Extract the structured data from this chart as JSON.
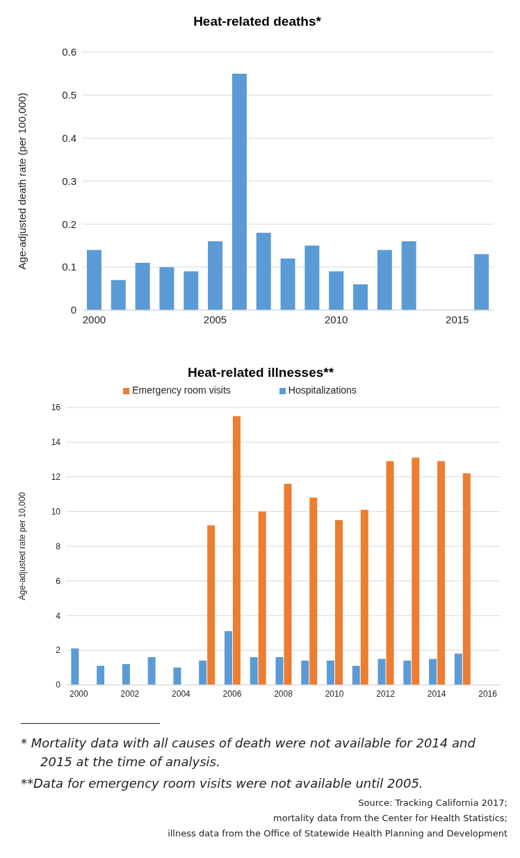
{
  "chart_data": [
    {
      "type": "bar",
      "title": "Heat-related deaths*",
      "ylabel": "Age-adjusted death rate (per 100,000)",
      "categories": [
        "2000",
        null,
        null,
        null,
        null,
        "2005",
        null,
        null,
        null,
        null,
        "2010",
        null,
        null,
        null,
        null,
        "2015",
        null
      ],
      "values": [
        0.14,
        0.07,
        0.11,
        0.1,
        0.09,
        0.16,
        0.55,
        0.18,
        0.12,
        0.15,
        0.09,
        0.06,
        0.14,
        0.16,
        null,
        null,
        0.13
      ],
      "color": "#5b9bd5",
      "ylim": [
        0,
        0.6
      ],
      "yticks": [
        0,
        0.1,
        0.2,
        0.3,
        0.4,
        0.5,
        0.6
      ],
      "grid": "y"
    },
    {
      "type": "bar",
      "title": "Heat-related illnesses**",
      "ylabel": "Age-adjusted rate per 10,000",
      "categories": [
        "2000",
        null,
        "2002",
        null,
        "2004",
        null,
        "2006",
        null,
        "2008",
        null,
        "2010",
        null,
        "2012",
        null,
        "2014",
        null,
        "2016"
      ],
      "series": [
        {
          "name": "Hospitalizations",
          "color": "#5b9bd5",
          "values": [
            2.1,
            1.1,
            1.2,
            1.6,
            1.0,
            1.4,
            3.1,
            1.6,
            1.6,
            1.4,
            1.4,
            1.1,
            1.5,
            1.4,
            1.5,
            1.8,
            null
          ]
        },
        {
          "name": "Emergency room visits",
          "color": "#ed7d31",
          "values": [
            null,
            null,
            null,
            null,
            null,
            9.2,
            15.5,
            10.0,
            11.6,
            10.8,
            9.5,
            10.1,
            12.9,
            13.1,
            12.9,
            12.2,
            null
          ]
        }
      ],
      "ylim": [
        0,
        16
      ],
      "yticks": [
        0,
        2,
        4,
        6,
        8,
        10,
        12,
        14,
        16
      ],
      "grid": "y",
      "legend": "top",
      "annotations": [
        "*  Mortality data with all causes of death were not available for 2014 and 2015 at the time of analysis.",
        "**Data for emergency room visits were not available until 2005.",
        "Source: Tracking California 2017;",
        "mortality data from the Center for Health Statistics;",
        "illness data from the Office of Statewide Health Planning and Development"
      ]
    }
  ]
}
